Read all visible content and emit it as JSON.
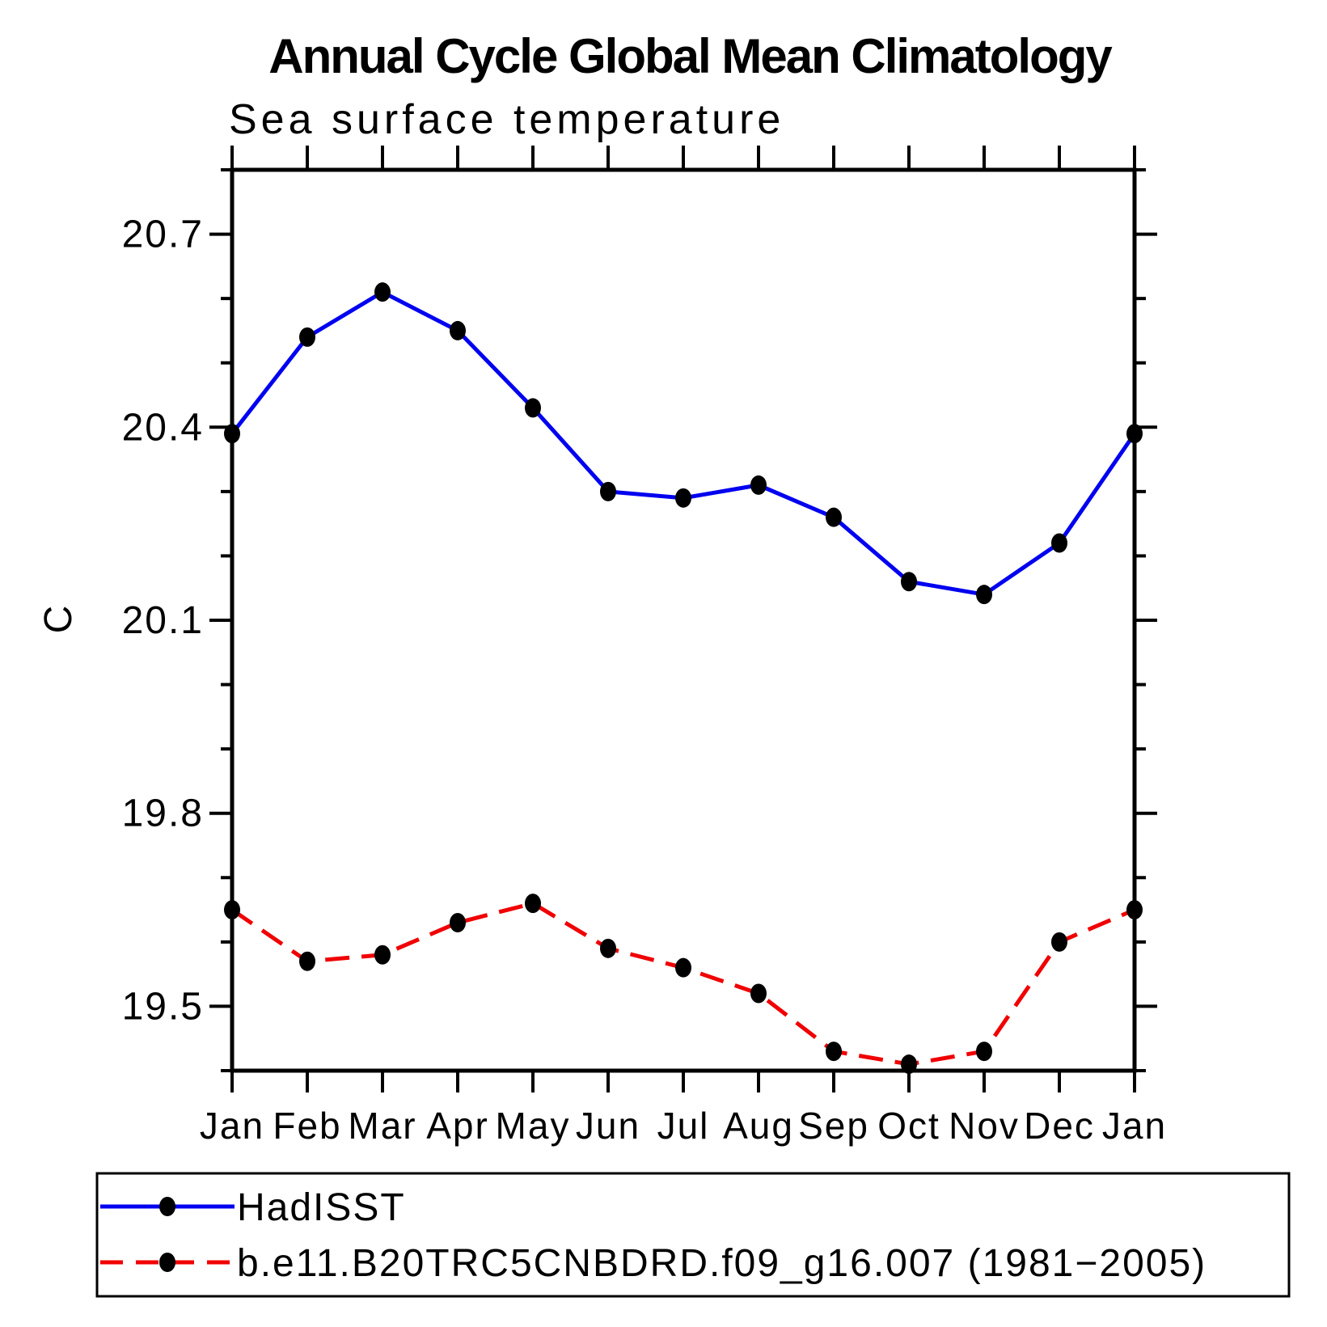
{
  "title": "Annual Cycle Global Mean Climatology",
  "subtitle": "Sea surface temperature",
  "y_axis_label": "C",
  "x_tick_labels": [
    "Jan",
    "Feb",
    "Mar",
    "Apr",
    "May",
    "Jun",
    "Jul",
    "Aug",
    "Sep",
    "Oct",
    "Nov",
    "Dec",
    "Jan"
  ],
  "y_tick_labels": [
    "19.5",
    "19.8",
    "20.1",
    "20.4",
    "20.7"
  ],
  "colors": {
    "hadisst_line": "#0000f0",
    "model_line": "#f00000",
    "marker": "#000000",
    "axis": "#000000",
    "background": "#ffffff"
  },
  "legend": {
    "items": [
      {
        "label": "HadISST"
      },
      {
        "label": "b.e11.B20TRC5CNBDRD.f09_g16.007 (1981−2005)"
      }
    ]
  },
  "chart_data": {
    "type": "line",
    "title": "Annual Cycle Global Mean Climatology",
    "subtitle": "Sea surface temperature",
    "xlabel": "",
    "ylabel": "C",
    "categories": [
      "Jan",
      "Feb",
      "Mar",
      "Apr",
      "May",
      "Jun",
      "Jul",
      "Aug",
      "Sep",
      "Oct",
      "Nov",
      "Dec",
      "Jan"
    ],
    "ylim": [
      19.4,
      20.8
    ],
    "yticks_labeled": [
      19.5,
      19.8,
      20.1,
      20.4,
      20.7
    ],
    "ytick_minor_step": 0.1,
    "grid": false,
    "legend_position": "bottom box",
    "series": [
      {
        "name": "HadISST",
        "line_style": "solid",
        "color": "#0000f0",
        "marker": "filled-black-dot",
        "values": [
          20.39,
          20.54,
          20.61,
          20.55,
          20.43,
          20.3,
          20.29,
          20.31,
          20.26,
          20.16,
          20.14,
          20.22,
          20.39
        ]
      },
      {
        "name": "b.e11.B20TRC5CNBDRD.f09_g16.007 (1981−2005)",
        "line_style": "dashed",
        "color": "#f00000",
        "marker": "filled-black-dot",
        "values": [
          19.65,
          19.57,
          19.58,
          19.63,
          19.66,
          19.59,
          19.56,
          19.52,
          19.43,
          19.41,
          19.43,
          19.6,
          19.65
        ]
      }
    ]
  }
}
